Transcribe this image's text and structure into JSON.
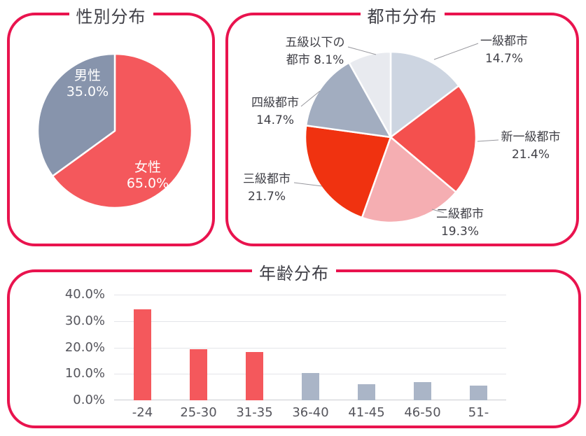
{
  "accent_color": "#e9134e",
  "text_color": "#3f3f46",
  "chart_data": [
    {
      "id": "gender-pie",
      "type": "pie",
      "title": "性別分布",
      "direction": "clockwise",
      "start_angle": "top",
      "label_text_color": "#ffffff",
      "segments": [
        {
          "label": "女性",
          "value": 65.0,
          "display": "65.0%",
          "color": "#f4585c"
        },
        {
          "label": "男性",
          "value": 35.0,
          "display": "35.0%",
          "color": "#8794ac"
        }
      ]
    },
    {
      "id": "city-pie",
      "type": "pie",
      "title": "都市分布",
      "direction": "clockwise",
      "start_angle": "top",
      "callout_text_color": "#3f3f46",
      "segments": [
        {
          "label": "一級都市",
          "value": 14.7,
          "display": "14.7%",
          "color": "#cdd5e1",
          "callout": [
            "一級都市",
            "14.7%"
          ]
        },
        {
          "label": "新一級都市",
          "value": 21.4,
          "display": "21.4%",
          "color": "#f4504e",
          "callout": [
            "新一級都市",
            "21.4%"
          ]
        },
        {
          "label": "二級都市",
          "value": 19.3,
          "display": "19.3%",
          "color": "#f5aeb2",
          "callout": [
            "二級都市",
            "19.3%"
          ]
        },
        {
          "label": "三級都市",
          "value": 21.7,
          "display": "21.7%",
          "color": "#f03210",
          "callout": [
            "三級都市",
            "21.7%"
          ]
        },
        {
          "label": "四級都市",
          "value": 14.7,
          "display": "14.7%",
          "color": "#a2adc0",
          "callout": [
            "四級都市",
            "14.7%"
          ]
        },
        {
          "label": "五級以下の都市",
          "value": 8.1,
          "display": "8.1%",
          "color": "#e8eaef",
          "callout": [
            "五級以下の",
            "都市 8.1%"
          ]
        }
      ]
    },
    {
      "id": "age-bar",
      "type": "bar",
      "title": "年齢分布",
      "categories": [
        "-24",
        "25-30",
        "31-35",
        "36-40",
        "41-45",
        "46-50",
        "51-"
      ],
      "values": [
        34.5,
        19.4,
        18.3,
        10.2,
        6.0,
        7.0,
        5.5
      ],
      "bar_colors": [
        "#f4585c",
        "#f4585c",
        "#f4585c",
        "#aab5c7",
        "#aab5c7",
        "#aab5c7",
        "#aab5c7"
      ],
      "xlabel": "",
      "ylabel": "",
      "ylim": [
        0,
        40
      ],
      "y_ticks": [
        {
          "value": 0,
          "label": "0.0%"
        },
        {
          "value": 10,
          "label": "10.0%"
        },
        {
          "value": 20,
          "label": "20.0%"
        },
        {
          "value": 30,
          "label": "30.0%"
        },
        {
          "value": 40,
          "label": "40.0%"
        }
      ],
      "grid": true,
      "legend": "none"
    }
  ]
}
